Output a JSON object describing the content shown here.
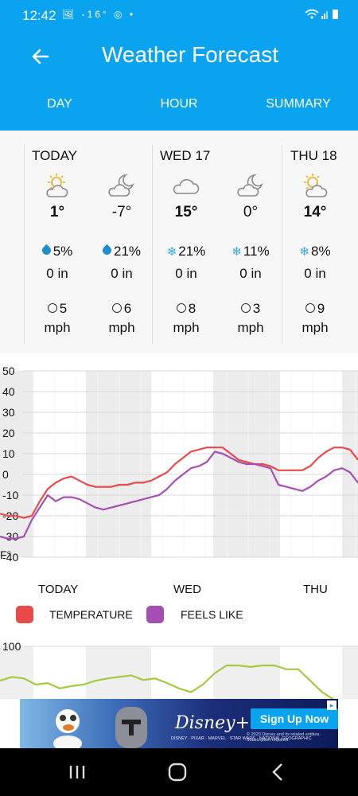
{
  "status_bar": {
    "time": "12:42",
    "icons": "🖼 -16° ◎ •",
    "right_icons": "📶 ▮"
  },
  "app": {
    "title": "Weather Forecast",
    "back_icon": "arrow-left-icon",
    "accent_color": "#0aa3f0"
  },
  "tabs": [
    {
      "label": "DAY"
    },
    {
      "label": "HOUR"
    },
    {
      "label": "SUMMARY"
    }
  ],
  "forecast": {
    "days": [
      {
        "label": "TODAY"
      },
      {
        "label": "WED  17"
      },
      {
        "label": "THU  18"
      }
    ],
    "slots": [
      {
        "icon": "sun-cloud-icon",
        "temp": "1°",
        "bold": true,
        "precip_icon": "drop-icon",
        "precip": "5%",
        "amount": "0 in",
        "wind": "5",
        "wind_unit": "mph"
      },
      {
        "icon": "moon-cloud-icon",
        "temp": "-7°",
        "bold": false,
        "precip_icon": "drop-icon",
        "precip": "21%",
        "amount": "0 in",
        "wind": "6",
        "wind_unit": "mph"
      },
      {
        "icon": "cloud-icon",
        "temp": "15°",
        "bold": true,
        "precip_icon": "snowflake-icon",
        "precip": "21%",
        "amount": "0 in",
        "wind": "8",
        "wind_unit": "mph"
      },
      {
        "icon": "moon-cloud-icon",
        "temp": "0°",
        "bold": false,
        "precip_icon": "snowflake-icon",
        "precip": "11%",
        "amount": "0 in",
        "wind": "3",
        "wind_unit": "mph"
      },
      {
        "icon": "sun-cloud-icon",
        "temp": "14°",
        "bold": true,
        "precip_icon": "snowflake-icon",
        "precip": "8%",
        "amount": "0 in",
        "wind": "9",
        "wind_unit": "mph"
      }
    ]
  },
  "chart_data": {
    "type": "line",
    "ylabel": "F°",
    "ylim": [
      -40,
      50
    ],
    "yticks": [
      "50",
      "40",
      "30",
      "20",
      "10",
      "0",
      "-10",
      "-20",
      "-30",
      "-40"
    ],
    "x_day_labels": [
      "TODAY",
      "WED",
      "THU"
    ],
    "legend": [
      "TEMPERATURE",
      "FEELS LIKE"
    ],
    "series": [
      {
        "name": "TEMPERATURE",
        "color": "#e84a4a",
        "x": [
          0,
          10,
          20,
          30,
          40,
          50,
          60,
          70,
          80,
          90,
          100,
          110,
          120,
          130,
          140,
          150,
          160,
          170,
          180,
          190,
          200,
          210,
          220,
          230,
          240,
          250,
          260,
          270,
          280,
          290,
          300,
          310,
          320,
          330,
          340,
          350,
          360,
          370,
          380,
          390,
          400,
          410,
          420,
          430,
          440,
          450
        ],
        "values": [
          -19,
          -20,
          -20,
          -21,
          -20,
          -13,
          -7,
          -4,
          -2,
          -1,
          -3,
          -5,
          -6,
          -6,
          -6,
          -5,
          -5,
          -4,
          -4,
          -3,
          -1,
          1,
          5,
          8,
          11,
          12,
          13,
          13,
          13,
          10,
          7,
          6,
          5,
          5,
          4,
          2,
          2,
          2,
          2,
          4,
          8,
          11,
          13,
          13,
          12,
          7
        ]
      },
      {
        "name": "FEELS LIKE",
        "color": "#a64fb3",
        "x": [
          0,
          10,
          20,
          30,
          40,
          50,
          60,
          70,
          80,
          90,
          100,
          110,
          120,
          130,
          140,
          150,
          160,
          170,
          180,
          190,
          200,
          210,
          220,
          230,
          240,
          250,
          260,
          270,
          280,
          290,
          300,
          310,
          320,
          330,
          340,
          350,
          360,
          370,
          380,
          390,
          400,
          410,
          420,
          430,
          440,
          450
        ],
        "values": [
          -30,
          -31,
          -31,
          -30,
          -22,
          -16,
          -10,
          -13,
          -11,
          -11,
          -12,
          -14,
          -16,
          -17,
          -16,
          -15,
          -14,
          -13,
          -12,
          -11,
          -10,
          -7,
          -3,
          0,
          3,
          4,
          6,
          11,
          10,
          8,
          6,
          5,
          5,
          4,
          3,
          -5,
          -6,
          -7,
          -8,
          -6,
          -3,
          -1,
          2,
          3,
          1,
          -4
        ]
      }
    ]
  },
  "chart2": {
    "ytick": "100",
    "color": "#a5c93f",
    "x": [
      0,
      15,
      30,
      45,
      60,
      75,
      90,
      105,
      120,
      135,
      150,
      165,
      180,
      195,
      210,
      225,
      240,
      255,
      270,
      285,
      300,
      315,
      330,
      345,
      360,
      375,
      390,
      405,
      420,
      435,
      450
    ],
    "values": [
      55,
      60,
      58,
      50,
      52,
      45,
      48,
      50,
      55,
      58,
      60,
      62,
      56,
      58,
      52,
      45,
      40,
      50,
      65,
      75,
      75,
      73,
      75,
      75,
      70,
      70,
      55,
      40,
      30,
      20,
      28
    ]
  },
  "ad": {
    "brand": "Disney+",
    "cta": "Sign Up Now",
    "sub": "DISNEY · PIXAR · MARVEL · STAR WARS · NATIONAL GEOGRAPHIC",
    "legal": "© 2020 Disney and its related entities. Subscription required."
  }
}
